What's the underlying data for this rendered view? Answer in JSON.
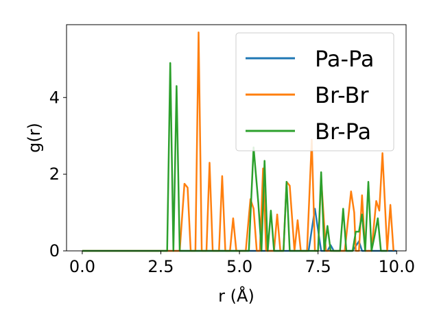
{
  "chart_data": {
    "type": "line",
    "title": "",
    "xlabel": "r (Å)",
    "ylabel": "g(r)",
    "xlim": [
      -0.5,
      10.3
    ],
    "ylim": [
      0,
      5.9
    ],
    "xticks": [
      "0.0",
      "2.5",
      "5.0",
      "7.5",
      "10.0"
    ],
    "yticks": [
      "0",
      "2",
      "4"
    ],
    "legend_position": "top-right",
    "grid": false,
    "series": [
      {
        "name": "Pa-Pa",
        "color": "#1f77b4",
        "x": [
          0,
          7.2,
          7.4,
          7.6,
          7.8,
          7.9,
          8.0,
          8.6,
          8.8,
          8.9,
          10.0
        ],
        "y": [
          0,
          0,
          1.1,
          0,
          0,
          0.15,
          0,
          0,
          0.25,
          0,
          0
        ]
      },
      {
        "name": "Br-Br",
        "color": "#ff7f0e",
        "x": [
          0,
          3.1,
          3.25,
          3.35,
          3.45,
          3.6,
          3.7,
          3.8,
          3.95,
          4.05,
          4.15,
          4.35,
          4.45,
          4.55,
          4.7,
          4.8,
          4.9,
          5.2,
          5.35,
          5.45,
          5.55,
          5.65,
          5.75,
          5.85,
          5.95,
          6.1,
          6.2,
          6.3,
          6.4,
          6.5,
          6.6,
          6.75,
          6.85,
          6.95,
          7.05,
          7.15,
          7.3,
          7.4,
          7.5,
          7.6,
          7.75,
          7.85,
          7.95,
          8.25,
          8.35,
          8.55,
          8.65,
          8.7,
          8.8,
          8.9,
          9.0,
          9.1,
          9.2,
          9.35,
          9.45,
          9.55,
          9.7,
          9.8,
          9.9
        ],
        "y": [
          0,
          0,
          1.75,
          1.65,
          0,
          0,
          5.7,
          0,
          0,
          2.3,
          0,
          0,
          1.95,
          0,
          0,
          0.85,
          0,
          0,
          1.35,
          1.1,
          0,
          0,
          2.15,
          0,
          0,
          0,
          0.95,
          0,
          0,
          1.8,
          1.7,
          0,
          0.8,
          0,
          0,
          0,
          2.9,
          0,
          0,
          1.9,
          0,
          0,
          0,
          0,
          0,
          1.55,
          1.0,
          0,
          0,
          1.45,
          0,
          0,
          0,
          1.3,
          1.05,
          2.55,
          0,
          1.2,
          0
        ]
      },
      {
        "name": "Br-Pa",
        "color": "#2ca02c",
        "x": [
          0,
          2.7,
          2.8,
          2.9,
          3.0,
          3.1,
          5.3,
          5.45,
          5.6,
          5.7,
          5.8,
          5.9,
          6.0,
          6.1,
          6.2,
          6.4,
          6.5,
          6.6,
          6.7,
          7.5,
          7.6,
          7.7,
          7.8,
          7.9,
          8.2,
          8.3,
          8.4,
          8.6,
          8.7,
          8.8,
          8.9,
          9.0,
          9.1,
          9.2,
          9.3,
          9.4,
          9.5,
          9.6,
          9.7
        ],
        "y": [
          0,
          0,
          4.9,
          0,
          4.3,
          0,
          0,
          2.7,
          1.25,
          0,
          2.35,
          0,
          1.05,
          0,
          0,
          0,
          1.8,
          0,
          0,
          0,
          2.05,
          0,
          0.65,
          0,
          0,
          1.1,
          0,
          0,
          0.5,
          0.5,
          0.95,
          0,
          1.8,
          0,
          0.4,
          0.85,
          0,
          0,
          0
        ]
      }
    ]
  }
}
